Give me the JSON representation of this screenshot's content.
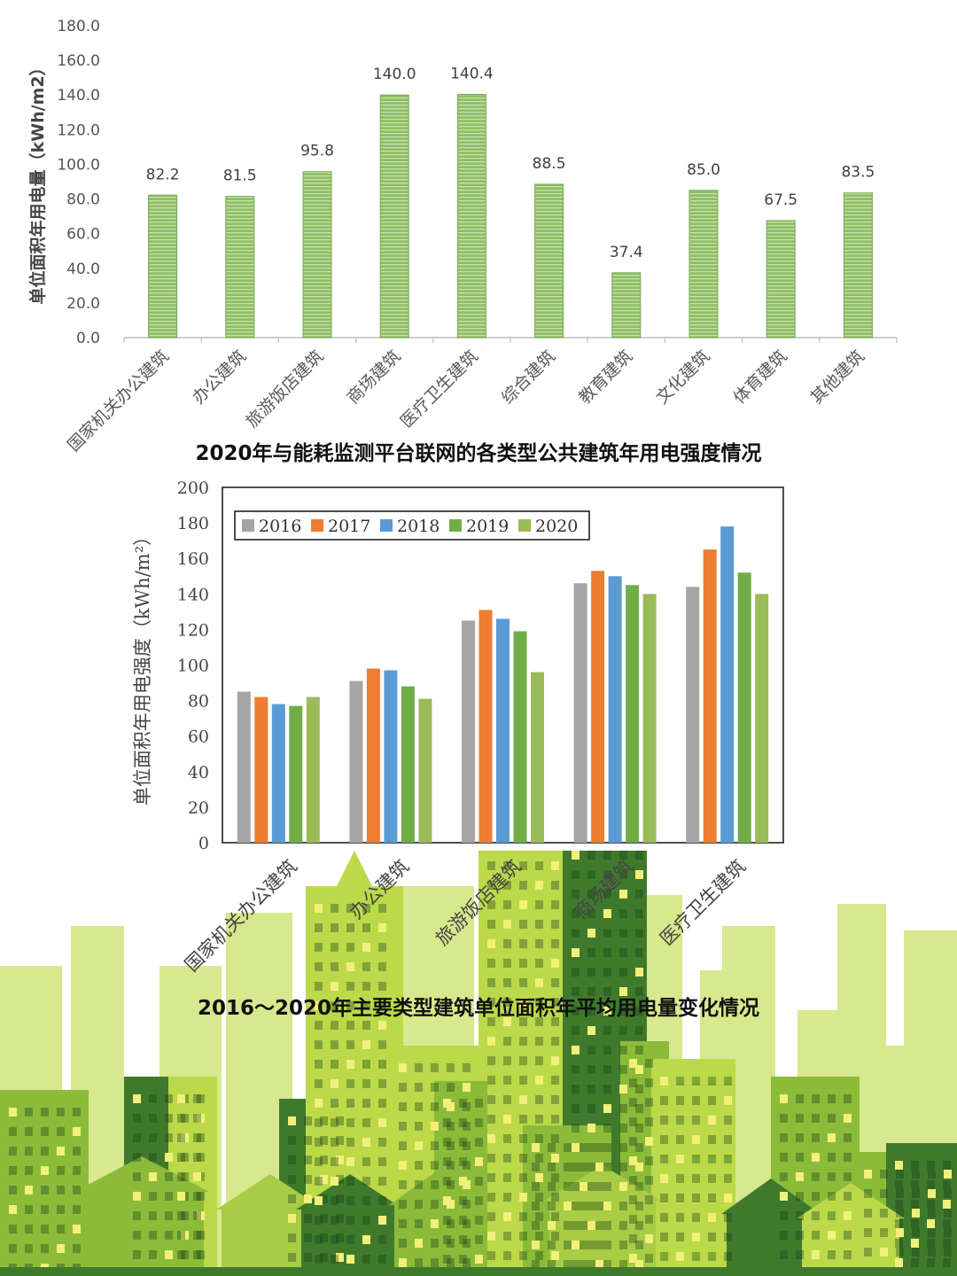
{
  "colors": {
    "bar_green": "#8dbf63",
    "stripe_green": "#c8e0ae",
    "series_2016": "#a5a5a5",
    "series_2017": "#ed7d31",
    "series_2018": "#5b9bd5",
    "series_2019": "#70ad47",
    "series_2020": "#9bbb59",
    "city_light": "#bcd94a",
    "city_mid": "#8cbb3a",
    "city_dark": "#3f7a2c"
  },
  "background": {
    "decoration": "green-city-skyline-illustration"
  },
  "chart_data": [
    {
      "type": "bar",
      "title": "2020年与能耗监测平台联网的各类型公共建筑年用电强度情况",
      "xlabel": "",
      "ylabel": "单位面积年用电量（kWh/m2）",
      "ylim": [
        0,
        180
      ],
      "yticks": [
        "0.0",
        "20.0",
        "40.0",
        "60.0",
        "80.0",
        "100.0",
        "120.0",
        "140.0",
        "160.0",
        "180.0"
      ],
      "grid": false,
      "categories": [
        "国家机关办公建筑",
        "办公建筑",
        "旅游饭店建筑",
        "商场建筑",
        "医疗卫生建筑",
        "综合建筑",
        "教育建筑",
        "文化建筑",
        "体育建筑",
        "其他建筑"
      ],
      "values": [
        82.2,
        81.5,
        95.8,
        140.0,
        140.4,
        88.5,
        37.4,
        85.0,
        67.5,
        83.5
      ],
      "value_labels": [
        "82.2",
        "81.5",
        "95.8",
        "140.0",
        "140.4",
        "88.5",
        "37.4",
        "85.0",
        "67.5",
        "83.5"
      ]
    },
    {
      "type": "bar",
      "title": "2016～2020年主要类型建筑单位面积年平均用电量变化情况",
      "xlabel": "",
      "ylabel": "单位面积年用电强度（kWh/m²）",
      "ylim": [
        0,
        200
      ],
      "yticks": [
        "0",
        "20",
        "40",
        "60",
        "80",
        "100",
        "120",
        "140",
        "160",
        "180",
        "200"
      ],
      "grid": false,
      "legend_position": "top-left",
      "categories": [
        "国家机关办公建筑",
        "办公建筑",
        "旅游饭店建筑",
        "商场建筑",
        "医疗卫生建筑"
      ],
      "series": [
        {
          "name": "2016",
          "values": [
            85,
            91,
            125,
            146,
            144
          ]
        },
        {
          "name": "2017",
          "values": [
            82,
            98,
            131,
            153,
            165
          ]
        },
        {
          "name": "2018",
          "values": [
            78,
            97,
            126,
            150,
            178
          ]
        },
        {
          "name": "2019",
          "values": [
            77,
            88,
            119,
            145,
            152
          ]
        },
        {
          "name": "2020",
          "values": [
            82,
            81,
            96,
            140,
            140
          ]
        }
      ]
    }
  ]
}
